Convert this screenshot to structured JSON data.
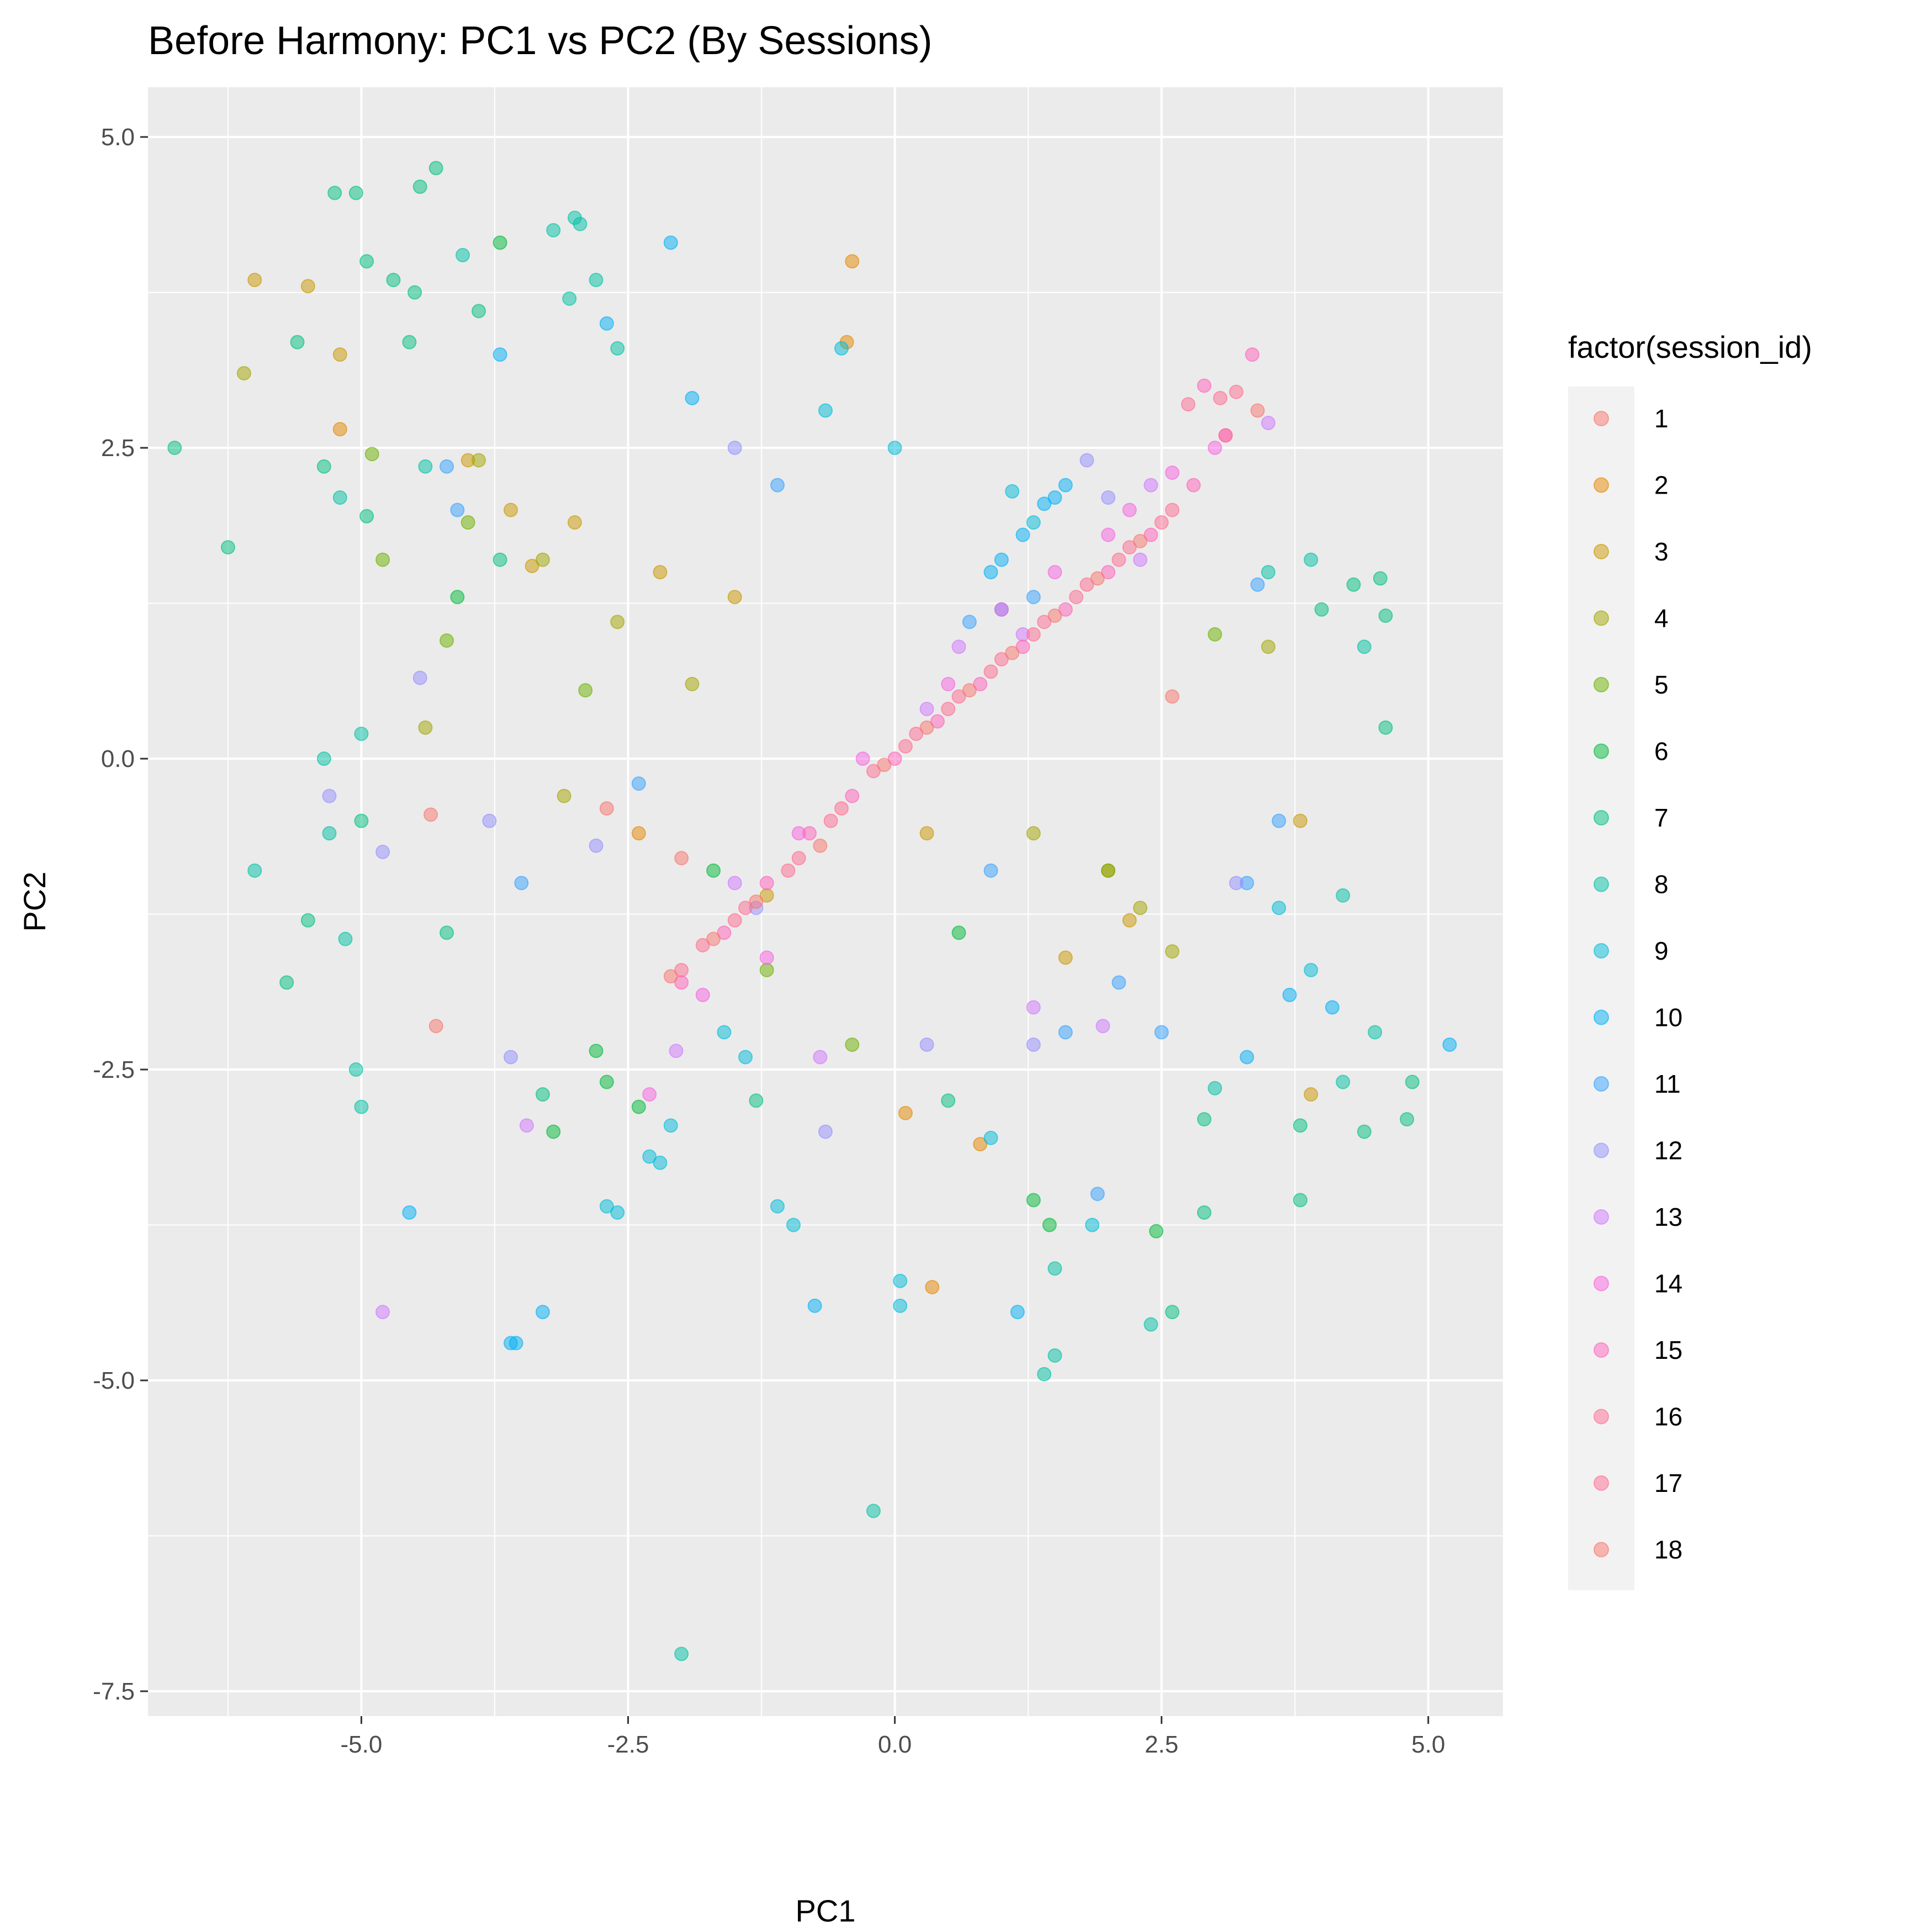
{
  "chart_data": {
    "type": "scatter",
    "title": "Before Harmony: PC1 vs PC2 (By Sessions)",
    "xlabel": "PC1",
    "ylabel": "PC2",
    "xlim": [
      -7.0,
      5.7
    ],
    "ylim": [
      -7.7,
      5.4
    ],
    "x_ticks": [
      {
        "value": -5.0,
        "label": "-5.0"
      },
      {
        "value": -2.5,
        "label": "-2.5"
      },
      {
        "value": 0.0,
        "label": "0.0"
      },
      {
        "value": 2.5,
        "label": "2.5"
      },
      {
        "value": 5.0,
        "label": "5.0"
      }
    ],
    "y_ticks": [
      {
        "value": 5.0,
        "label": "5.0"
      },
      {
        "value": 2.5,
        "label": "2.5"
      },
      {
        "value": 0.0,
        "label": "0.0"
      },
      {
        "value": -2.5,
        "label": "-2.5"
      },
      {
        "value": -5.0,
        "label": "-5.0"
      },
      {
        "value": -7.5,
        "label": "-7.5"
      }
    ],
    "grid": true,
    "legend_title": "factor(session_id)",
    "legend_position": "right",
    "point_alpha": 0.5,
    "series": [
      {
        "name": "1",
        "color": "#F8766D",
        "points": [
          [
            -4.35,
            -0.45
          ],
          [
            -4.3,
            -2.15
          ],
          [
            -2.0,
            -0.8
          ],
          [
            2.6,
            0.5
          ],
          [
            -2.7,
            -0.4
          ],
          [
            3.4,
            2.8
          ]
        ]
      },
      {
        "name": "2",
        "color": "#E58700",
        "points": [
          [
            -0.4,
            4.0
          ],
          [
            -0.45,
            3.35
          ],
          [
            0.35,
            -4.25
          ],
          [
            -5.2,
            2.65
          ],
          [
            0.8,
            -3.1
          ],
          [
            -2.4,
            -0.6
          ],
          [
            2.0,
            -0.9
          ],
          [
            0.1,
            -2.85
          ]
        ]
      },
      {
        "name": "3",
        "color": "#C99800",
        "points": [
          [
            -6.0,
            3.85
          ],
          [
            -5.5,
            3.8
          ],
          [
            -5.2,
            3.25
          ],
          [
            -3.6,
            2.0
          ],
          [
            -3.4,
            1.55
          ],
          [
            -4.0,
            2.4
          ],
          [
            -3.0,
            1.9
          ],
          [
            -2.2,
            1.5
          ],
          [
            -1.5,
            1.3
          ],
          [
            0.3,
            -0.6
          ],
          [
            1.6,
            -1.6
          ],
          [
            2.2,
            -1.3
          ],
          [
            3.9,
            -2.7
          ],
          [
            3.8,
            -0.5
          ],
          [
            -1.2,
            -1.1
          ]
        ]
      },
      {
        "name": "4",
        "color": "#A3A500",
        "points": [
          [
            -6.1,
            3.1
          ],
          [
            -4.4,
            0.25
          ],
          [
            -3.3,
            1.6
          ],
          [
            -3.9,
            2.4
          ],
          [
            -2.6,
            1.1
          ],
          [
            -1.9,
            0.6
          ],
          [
            2.3,
            -1.2
          ],
          [
            2.6,
            -1.55
          ],
          [
            1.3,
            -0.6
          ],
          [
            -3.1,
            -0.3
          ],
          [
            3.5,
            0.9
          ]
        ]
      },
      {
        "name": "5",
        "color": "#6BB100",
        "points": [
          [
            -4.9,
            2.45
          ],
          [
            -4.8,
            1.6
          ],
          [
            -4.2,
            0.95
          ],
          [
            -4.0,
            1.9
          ],
          [
            -2.9,
            0.55
          ],
          [
            -1.2,
            -1.7
          ],
          [
            3.0,
            1.0
          ],
          [
            2.0,
            -0.9
          ],
          [
            -0.4,
            -2.3
          ]
        ]
      },
      {
        "name": "6",
        "color": "#00BA38",
        "points": [
          [
            -3.7,
            4.15
          ],
          [
            -4.1,
            1.3
          ],
          [
            -3.2,
            -3.0
          ],
          [
            -2.8,
            -2.35
          ],
          [
            -2.4,
            -2.8
          ],
          [
            1.45,
            -3.75
          ],
          [
            1.3,
            -3.55
          ],
          [
            2.45,
            -3.8
          ],
          [
            -1.7,
            -0.9
          ],
          [
            0.6,
            -1.4
          ],
          [
            -2.7,
            -2.6
          ]
        ]
      },
      {
        "name": "7",
        "color": "#00BF7D",
        "points": [
          [
            -5.25,
            4.55
          ],
          [
            -5.05,
            4.55
          ],
          [
            -4.45,
            4.6
          ],
          [
            -4.3,
            4.75
          ],
          [
            -4.95,
            4.0
          ],
          [
            -4.7,
            3.85
          ],
          [
            -4.5,
            3.75
          ],
          [
            -3.9,
            3.6
          ],
          [
            -5.6,
            3.35
          ],
          [
            -4.55,
            3.35
          ],
          [
            -6.75,
            2.5
          ],
          [
            -6.25,
            1.7
          ],
          [
            -5.35,
            2.35
          ],
          [
            -4.95,
            1.95
          ],
          [
            -3.7,
            1.6
          ],
          [
            -4.2,
            -1.4
          ],
          [
            -5.0,
            -0.5
          ],
          [
            -5.5,
            -1.3
          ],
          [
            -5.7,
            -1.8
          ],
          [
            -3.3,
            -2.7
          ],
          [
            2.9,
            -3.65
          ],
          [
            3.8,
            -2.95
          ],
          [
            4.4,
            -3.0
          ],
          [
            4.8,
            -2.9
          ],
          [
            4.85,
            -2.6
          ],
          [
            3.8,
            -3.55
          ],
          [
            2.9,
            -2.9
          ],
          [
            -1.3,
            -2.75
          ],
          [
            0.5,
            -2.75
          ],
          [
            4.0,
            1.2
          ],
          [
            4.3,
            1.4
          ],
          [
            4.55,
            1.45
          ],
          [
            4.6,
            1.15
          ],
          [
            4.6,
            0.25
          ],
          [
            2.6,
            -4.45
          ]
        ]
      },
      {
        "name": "8",
        "color": "#00C1A3",
        "points": [
          [
            -3.0,
            4.35
          ],
          [
            -3.2,
            4.25
          ],
          [
            -2.95,
            4.3
          ],
          [
            -2.8,
            3.85
          ],
          [
            -3.05,
            3.7
          ],
          [
            -2.6,
            3.3
          ],
          [
            -4.05,
            4.05
          ],
          [
            -4.4,
            2.35
          ],
          [
            -5.2,
            2.1
          ],
          [
            -5.35,
            0.0
          ],
          [
            -5.3,
            -0.6
          ],
          [
            -5.15,
            -1.45
          ],
          [
            -5.05,
            -2.5
          ],
          [
            -5.0,
            -2.8
          ],
          [
            -6.0,
            -0.9
          ],
          [
            -5.0,
            0.2
          ],
          [
            -2.0,
            -7.2
          ],
          [
            -0.2,
            -6.05
          ],
          [
            1.4,
            -4.95
          ],
          [
            1.5,
            -4.8
          ],
          [
            1.5,
            -4.1
          ],
          [
            2.4,
            -4.55
          ],
          [
            3.0,
            -2.65
          ],
          [
            3.5,
            1.5
          ],
          [
            3.9,
            1.6
          ],
          [
            4.4,
            0.9
          ],
          [
            4.2,
            -1.1
          ],
          [
            4.5,
            -2.2
          ],
          [
            4.2,
            -2.6
          ]
        ]
      },
      {
        "name": "9",
        "color": "#00BCD8",
        "points": [
          [
            -2.7,
            -3.6
          ],
          [
            -2.6,
            -3.65
          ],
          [
            -2.3,
            -3.2
          ],
          [
            -2.2,
            -3.25
          ],
          [
            -2.1,
            -2.95
          ],
          [
            -1.6,
            -2.2
          ],
          [
            -1.4,
            -2.4
          ],
          [
            -1.1,
            -3.6
          ],
          [
            -0.95,
            -3.75
          ],
          [
            0.05,
            -4.2
          ],
          [
            0.05,
            -4.4
          ],
          [
            0.9,
            -3.05
          ],
          [
            1.85,
            -3.75
          ],
          [
            -0.5,
            3.3
          ],
          [
            -0.65,
            2.8
          ],
          [
            0.0,
            2.5
          ],
          [
            1.1,
            2.15
          ],
          [
            1.3,
            1.9
          ],
          [
            3.6,
            -1.2
          ],
          [
            3.9,
            -1.7
          ]
        ]
      },
      {
        "name": "10",
        "color": "#00B0F6",
        "points": [
          [
            -3.6,
            -4.7
          ],
          [
            -3.55,
            -4.7
          ],
          [
            -4.55,
            -3.65
          ],
          [
            -3.3,
            -4.45
          ],
          [
            -0.75,
            -4.4
          ],
          [
            1.15,
            -4.45
          ],
          [
            5.2,
            -2.3
          ],
          [
            3.7,
            -1.9
          ],
          [
            4.1,
            -2.0
          ],
          [
            3.3,
            -2.4
          ],
          [
            1.6,
            2.2
          ],
          [
            1.4,
            2.05
          ],
          [
            1.5,
            2.1
          ],
          [
            1.2,
            1.8
          ],
          [
            1.0,
            1.6
          ],
          [
            0.9,
            1.5
          ],
          [
            -2.1,
            4.15
          ],
          [
            -2.7,
            3.5
          ],
          [
            -3.7,
            3.25
          ],
          [
            -1.9,
            2.9
          ]
        ]
      },
      {
        "name": "11",
        "color": "#35A2FF",
        "points": [
          [
            -4.1,
            2.0
          ],
          [
            -4.2,
            2.35
          ],
          [
            -3.5,
            -1.0
          ],
          [
            -2.4,
            -0.2
          ],
          [
            -1.1,
            2.2
          ],
          [
            0.9,
            -0.9
          ],
          [
            2.1,
            -1.8
          ],
          [
            1.6,
            -2.2
          ],
          [
            2.5,
            -2.2
          ],
          [
            3.4,
            1.4
          ],
          [
            3.6,
            -0.5
          ],
          [
            3.3,
            -1.0
          ],
          [
            1.9,
            -3.5
          ],
          [
            0.7,
            1.1
          ],
          [
            1.0,
            1.2
          ],
          [
            1.3,
            1.3
          ]
        ]
      },
      {
        "name": "12",
        "color": "#9590FF",
        "points": [
          [
            -5.3,
            -0.3
          ],
          [
            -4.8,
            -0.75
          ],
          [
            -4.45,
            0.65
          ],
          [
            -3.8,
            -0.5
          ],
          [
            -3.6,
            -2.4
          ],
          [
            -2.8,
            -0.7
          ],
          [
            -1.3,
            -1.2
          ],
          [
            0.3,
            -2.3
          ],
          [
            1.3,
            -2.3
          ],
          [
            1.8,
            2.4
          ],
          [
            2.0,
            2.1
          ],
          [
            3.2,
            -1.0
          ],
          [
            -0.65,
            -3.0
          ],
          [
            -1.5,
            2.5
          ]
        ]
      },
      {
        "name": "13",
        "color": "#D177FF",
        "points": [
          [
            -4.8,
            -4.45
          ],
          [
            -3.45,
            -2.95
          ],
          [
            -2.05,
            -2.35
          ],
          [
            -1.5,
            -1.0
          ],
          [
            0.3,
            0.4
          ],
          [
            0.6,
            0.9
          ],
          [
            1.2,
            1.0
          ],
          [
            2.3,
            1.6
          ],
          [
            2.4,
            2.2
          ],
          [
            3.5,
            2.7
          ],
          [
            1.95,
            -2.15
          ],
          [
            1.3,
            -2.0
          ],
          [
            -0.7,
            -2.4
          ]
        ]
      },
      {
        "name": "14",
        "color": "#F763E0",
        "points": [
          [
            -2.3,
            -2.7
          ],
          [
            -1.2,
            -1.6
          ],
          [
            -0.9,
            -0.6
          ],
          [
            -0.3,
            0.0
          ],
          [
            0.5,
            0.6
          ],
          [
            1.0,
            1.2
          ],
          [
            1.5,
            1.5
          ],
          [
            2.0,
            1.8
          ],
          [
            2.2,
            2.0
          ],
          [
            2.6,
            2.3
          ],
          [
            3.0,
            2.5
          ],
          [
            3.1,
            2.6
          ],
          [
            -1.8,
            -1.9
          ]
        ]
      },
      {
        "name": "15",
        "color": "#FF62BC",
        "points": [
          [
            -2.0,
            -1.8
          ],
          [
            -1.6,
            -1.4
          ],
          [
            -1.2,
            -1.0
          ],
          [
            -0.8,
            -0.6
          ],
          [
            -0.4,
            -0.3
          ],
          [
            0.0,
            0.0
          ],
          [
            0.4,
            0.3
          ],
          [
            0.8,
            0.6
          ],
          [
            1.2,
            0.9
          ],
          [
            1.6,
            1.2
          ],
          [
            2.0,
            1.5
          ],
          [
            2.4,
            1.8
          ],
          [
            2.8,
            2.2
          ],
          [
            2.9,
            3.0
          ],
          [
            3.35,
            3.25
          ]
        ]
      },
      {
        "name": "16",
        "color": "#FF6C91",
        "points": [
          [
            -1.8,
            -1.5
          ],
          [
            -1.4,
            -1.2
          ],
          [
            -1.0,
            -0.9
          ],
          [
            -0.6,
            -0.5
          ],
          [
            -0.2,
            -0.1
          ],
          [
            0.2,
            0.2
          ],
          [
            0.6,
            0.5
          ],
          [
            1.0,
            0.8
          ],
          [
            1.4,
            1.1
          ],
          [
            1.8,
            1.4
          ],
          [
            2.2,
            1.7
          ],
          [
            2.6,
            2.0
          ],
          [
            2.75,
            2.85
          ],
          [
            3.1,
            2.6
          ],
          [
            3.05,
            2.9
          ],
          [
            3.2,
            2.95
          ]
        ]
      },
      {
        "name": "17",
        "color": "#FF6C91",
        "points": [
          [
            -2.0,
            -1.7
          ],
          [
            -1.5,
            -1.3
          ],
          [
            -0.9,
            -0.8
          ],
          [
            -0.5,
            -0.4
          ],
          [
            0.1,
            0.1
          ],
          [
            0.5,
            0.4
          ],
          [
            0.9,
            0.7
          ],
          [
            1.3,
            1.0
          ],
          [
            1.7,
            1.3
          ],
          [
            2.1,
            1.6
          ],
          [
            2.5,
            1.9
          ]
        ]
      },
      {
        "name": "18",
        "color": "#F8766D",
        "points": [
          [
            -2.1,
            -1.75
          ],
          [
            -1.7,
            -1.45
          ],
          [
            -1.3,
            -1.15
          ],
          [
            -0.7,
            -0.7
          ],
          [
            -0.1,
            -0.05
          ],
          [
            0.3,
            0.25
          ],
          [
            0.7,
            0.55
          ],
          [
            1.1,
            0.85
          ],
          [
            1.5,
            1.15
          ],
          [
            1.9,
            1.45
          ],
          [
            2.3,
            1.75
          ]
        ]
      }
    ]
  }
}
